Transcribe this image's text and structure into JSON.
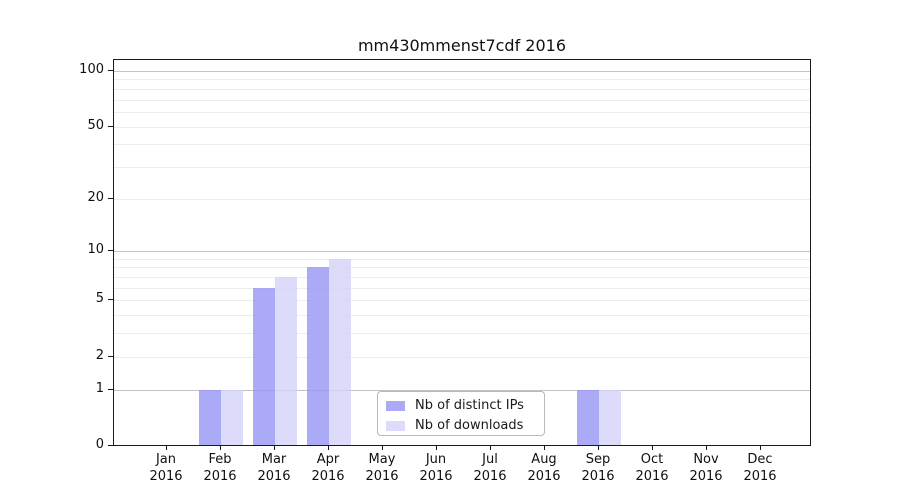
{
  "chart_data": {
    "type": "bar",
    "title": "mm430mmenst7cdf 2016",
    "categories": [
      "Jan",
      "Feb",
      "Mar",
      "Apr",
      "May",
      "Jun",
      "Jul",
      "Aug",
      "Sep",
      "Oct",
      "Nov",
      "Dec"
    ],
    "x_tick_year": "2016",
    "series": [
      {
        "name": "Nb of distinct IPs",
        "color": "#9595f5",
        "opacity": 0.8,
        "values": [
          0,
          1,
          6,
          8,
          0,
          0,
          0,
          0,
          1,
          0,
          0,
          0
        ]
      },
      {
        "name": "Nb of downloads",
        "color": "#d3d3f9",
        "opacity": 0.8,
        "values": [
          0,
          1,
          7,
          9,
          0,
          0,
          0,
          0,
          1,
          0,
          0,
          0
        ]
      }
    ],
    "xlabel": "",
    "ylabel": "",
    "yscale": "log10(1+v)",
    "ylim": [
      0,
      115
    ],
    "yticks": [
      0,
      1,
      2,
      5,
      10,
      20,
      50,
      100
    ],
    "grid": {
      "minor_lines": [
        2,
        3,
        4,
        5,
        6,
        7,
        8,
        9,
        20,
        30,
        40,
        50,
        60,
        70,
        80,
        90
      ],
      "major_lines": [
        1,
        10,
        100
      ],
      "minor_color": "#ededed",
      "major_color": "#c3c3c3"
    },
    "legend_position": "lower-center-inside",
    "axis_color": "#1a1a1a"
  }
}
